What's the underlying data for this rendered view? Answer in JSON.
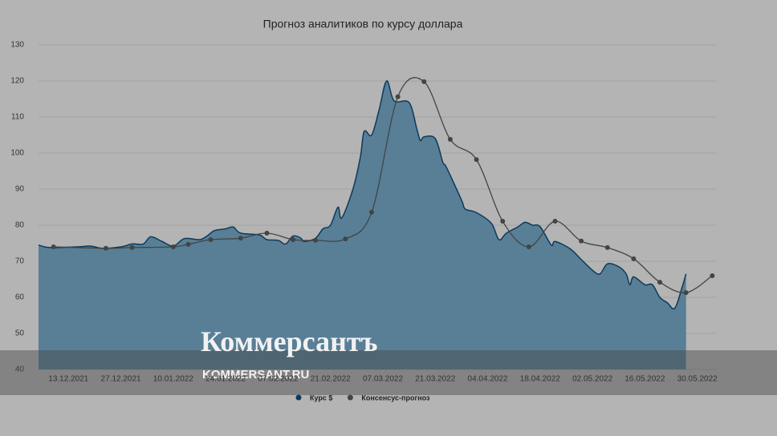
{
  "chart_data": {
    "type": "area-line",
    "title": "Прогноз аналитиков по курсу доллара",
    "ylim": [
      40,
      130
    ],
    "yticks": [
      40,
      50,
      60,
      70,
      80,
      90,
      100,
      110,
      120,
      130
    ],
    "xlim": [
      "05.12.2021",
      "04.06.2022"
    ],
    "xticks": [
      "13.12.2021",
      "27.12.2021",
      "10.01.2022",
      "24.01.2022",
      "07.02.2022",
      "21.02.2022",
      "07.03.2022",
      "21.03.2022",
      "04.04.2022",
      "18.04.2022",
      "02.05.2022",
      "16.05.2022",
      "30.05.2022"
    ],
    "grid": true,
    "series": [
      {
        "name": "Курс $",
        "color": "#0d3a5a",
        "fill": "#587f96",
        "x": [
          "05.12.2021",
          "08.12.2021",
          "15.12.2021",
          "19.12.2021",
          "22.12.2021",
          "27.12.2021",
          "30.12.2021",
          "02.01.2022",
          "04.01.2022",
          "07.01.2022",
          "10.01.2022",
          "13.01.2022",
          "17.01.2022",
          "19.01.2022",
          "21.01.2022",
          "24.01.2022",
          "26.01.2022",
          "28.01.2022",
          "02.02.2022",
          "04.02.2022",
          "07.02.2022",
          "09.02.2022",
          "11.02.2022",
          "13.02.2022",
          "14.02.2022",
          "17.02.2022",
          "19.02.2022",
          "21.02.2022",
          "23.02.2022",
          "24.02.2022",
          "27.02.2022",
          "01.03.2022",
          "02.03.2022",
          "04.03.2022",
          "06.03.2022",
          "08.03.2022",
          "10.03.2022",
          "14.03.2022",
          "16.03.2022",
          "17.03.2022",
          "18.03.2022",
          "21.03.2022",
          "23.03.2022",
          "24.03.2022",
          "28.03.2022",
          "29.03.2022",
          "01.04.2022",
          "05.04.2022",
          "07.04.2022",
          "09.04.2022",
          "12.04.2022",
          "14.04.2022",
          "16.04.2022",
          "18.04.2022",
          "21.04.2022",
          "22.04.2022",
          "26.04.2022",
          "29.04.2022",
          "02.05.2022",
          "04.05.2022",
          "06.05.2022",
          "09.05.2022",
          "11.05.2022",
          "12.05.2022",
          "13.05.2022",
          "16.05.2022",
          "18.05.2022",
          "20.05.2022",
          "22.05.2022",
          "24.05.2022",
          "26.05.2022",
          "27.05.2022"
        ],
        "values": [
          74.5,
          73.8,
          74,
          74.2,
          73.6,
          74,
          74.8,
          74.8,
          76.8,
          75.5,
          74.2,
          76.3,
          76,
          77,
          78.5,
          79,
          79.5,
          77.8,
          77.3,
          76,
          75.8,
          74.8,
          77,
          76.5,
          75.5,
          76.4,
          79,
          80,
          85,
          82,
          90,
          99,
          106,
          105,
          112,
          120,
          114.5,
          114,
          107,
          103.5,
          104.5,
          104,
          97.5,
          96,
          87,
          84.5,
          83.5,
          80.5,
          76,
          77.8,
          79.5,
          80.8,
          80,
          79.6,
          74.5,
          75.5,
          73.5,
          70.5,
          67.5,
          66.5,
          69.3,
          68.5,
          66.5,
          63.5,
          65.7,
          63.5,
          63.5,
          60,
          58.5,
          57,
          63,
          66.5
        ]
      },
      {
        "name": "Консенсус-прогноз",
        "color": "#444444",
        "x": [
          "09.12.2021",
          "23.12.2021",
          "30.12.2021",
          "10.01.2022",
          "14.01.2022",
          "20.01.2022",
          "28.01.2022",
          "04.02.2022",
          "11.02.2022",
          "17.02.2022",
          "25.02.2022",
          "04.03.2022",
          "11.03.2022",
          "18.03.2022",
          "25.03.2022",
          "01.04.2022",
          "08.04.2022",
          "15.04.2022",
          "22.04.2022",
          "29.04.2022",
          "06.05.2022",
          "13.05.2022",
          "20.05.2022",
          "27.05.2022",
          "03.06.2022"
        ],
        "values": [
          74,
          73.6,
          73.8,
          74,
          74.7,
          76,
          76.4,
          77.8,
          76,
          75.8,
          76.2,
          83.6,
          115.6,
          119.8,
          103.8,
          98.2,
          81.1,
          74,
          81.1,
          75.6,
          73.8,
          70.7,
          64.2,
          61.3,
          66
        ]
      }
    ],
    "watermark": {
      "logo": "Коммерсантъ",
      "site": "KOMMERSANT.RU"
    }
  }
}
